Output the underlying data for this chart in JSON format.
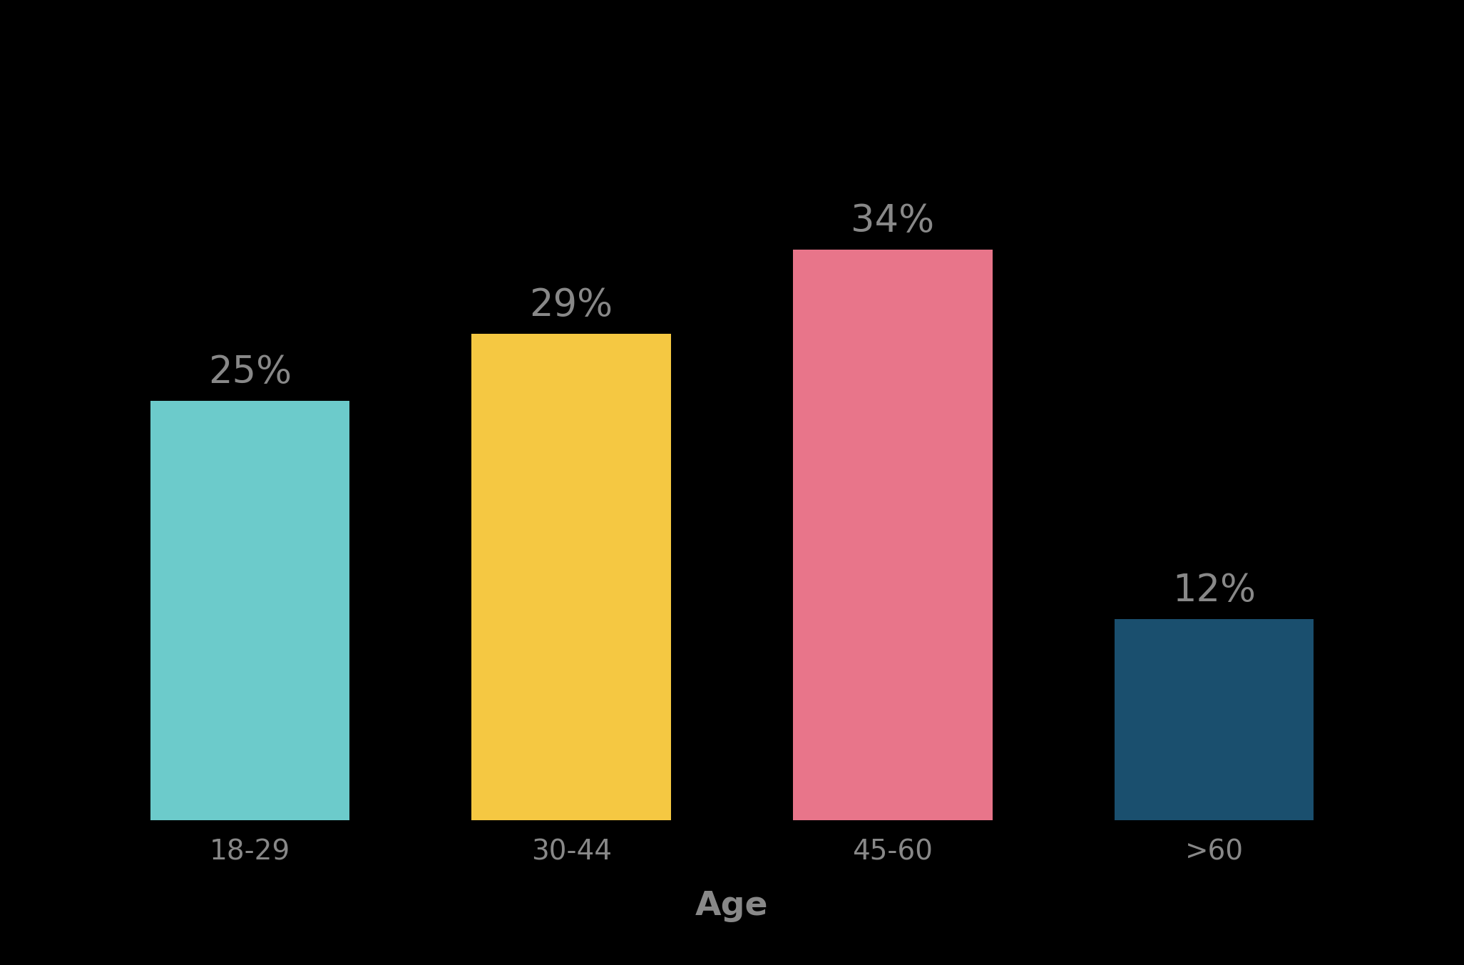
{
  "categories": [
    "18-29",
    "30-44",
    "45-60",
    ">60"
  ],
  "values": [
    25,
    29,
    34,
    12
  ],
  "labels": [
    "25%",
    "29%",
    "34%",
    "12%"
  ],
  "bar_colors": [
    "#6CCBCB",
    "#F5C842",
    "#E8758A",
    "#1A4F6E"
  ],
  "background_color": "#000000",
  "label_color": "#888888",
  "xlabel": "Age",
  "xlabel_fontsize": 34,
  "xlabel_fontweight": "bold",
  "tick_fontsize": 28,
  "bar_label_fontsize": 38,
  "ylim": [
    0,
    42
  ],
  "bar_width": 0.62,
  "xlim": [
    -0.55,
    3.55
  ]
}
